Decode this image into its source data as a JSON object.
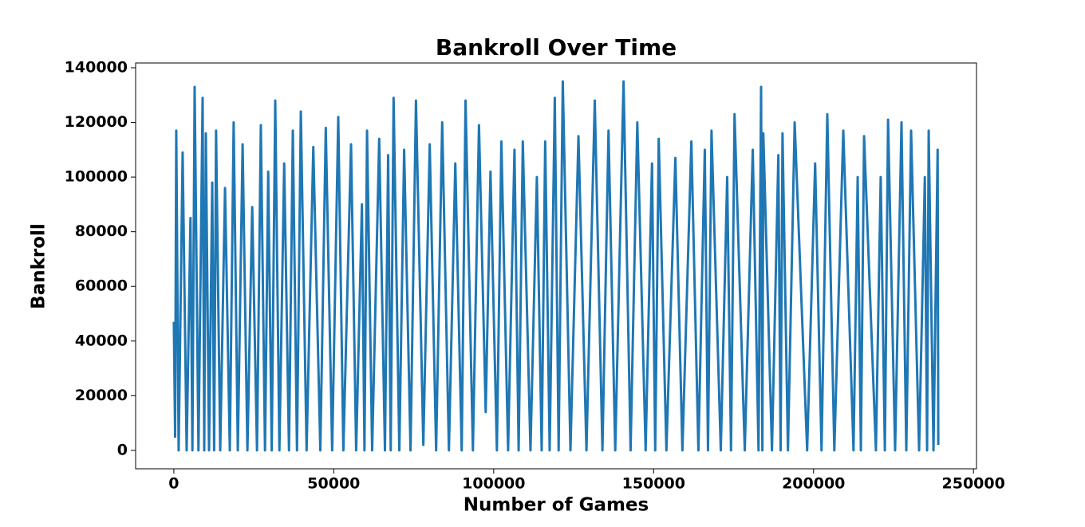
{
  "chart_data": {
    "type": "line",
    "title": "Bankroll Over Time",
    "x_label": "Number of Games",
    "y_label": "Bankroll",
    "x": [
      0,
      400,
      750,
      1500,
      2750,
      4000,
      5200,
      5800,
      6500,
      7700,
      9000,
      9500,
      10000,
      11000,
      12000,
      12600,
      13200,
      14500,
      16000,
      17500,
      18700,
      20000,
      21500,
      23000,
      24500,
      26000,
      27200,
      28500,
      29500,
      30600,
      31700,
      33000,
      34500,
      36000,
      37200,
      38500,
      39700,
      41500,
      43600,
      45800,
      47500,
      49500,
      51400,
      53000,
      55400,
      57000,
      58800,
      59600,
      60400,
      62000,
      64200,
      66000,
      67000,
      67800,
      68700,
      70500,
      72000,
      74000,
      75700,
      78000,
      80000,
      82000,
      83900,
      86000,
      88000,
      90000,
      91200,
      93500,
      95400,
      97500,
      99000,
      101000,
      102400,
      104500,
      106500,
      107800,
      109100,
      111500,
      113500,
      115000,
      116100,
      117500,
      119100,
      120300,
      121600,
      124000,
      126500,
      129000,
      131600,
      134000,
      135900,
      138000,
      140600,
      142800,
      144900,
      147500,
      149500,
      150500,
      151600,
      154000,
      156800,
      159000,
      161800,
      164000,
      166000,
      167000,
      168100,
      171000,
      173000,
      174200,
      175300,
      178500,
      181000,
      182800,
      183600,
      184000,
      184300,
      187000,
      189000,
      189700,
      190300,
      192000,
      194100,
      198000,
      200500,
      202500,
      204300,
      206500,
      209300,
      212500,
      213800,
      214800,
      215800,
      219500,
      221000,
      222300,
      223300,
      225500,
      227500,
      229000,
      230500,
      233000,
      234800,
      235500,
      236000,
      237500,
      238800,
      239000
    ],
    "series": [
      {
        "name": "Bankroll",
        "color": "#1f77b4",
        "values": [
          47000,
          5000,
          117000,
          0,
          109000,
          0,
          85000,
          0,
          133000,
          0,
          129000,
          0,
          116000,
          0,
          98000,
          0,
          117000,
          0,
          96000,
          0,
          120000,
          0,
          112000,
          0,
          89000,
          0,
          119000,
          0,
          102000,
          0,
          128000,
          0,
          105000,
          0,
          117000,
          0,
          124000,
          0,
          111000,
          0,
          118000,
          0,
          122000,
          0,
          112000,
          0,
          90000,
          0,
          117000,
          0,
          114000,
          0,
          108000,
          0,
          129000,
          0,
          110000,
          0,
          128000,
          2000,
          112000,
          0,
          120000,
          0,
          105000,
          0,
          128000,
          0,
          119000,
          14000,
          102000,
          0,
          113000,
          0,
          110000,
          0,
          113000,
          0,
          100000,
          0,
          113000,
          0,
          129000,
          0,
          135000,
          0,
          115000,
          0,
          128000,
          0,
          117000,
          0,
          135000,
          0,
          120000,
          0,
          105000,
          0,
          114000,
          0,
          107000,
          0,
          113000,
          0,
          110000,
          0,
          117000,
          0,
          100000,
          0,
          123000,
          0,
          110000,
          0,
          133000,
          0,
          116000,
          0,
          108000,
          0,
          116000,
          0,
          120000,
          0,
          105000,
          0,
          123000,
          0,
          117000,
          0,
          100000,
          0,
          115000,
          0,
          100000,
          0,
          121000,
          0,
          120000,
          0,
          117000,
          0,
          100000,
          0,
          117000,
          0,
          110000,
          2000
        ]
      }
    ],
    "xlim": [
      -11950,
      250950
    ],
    "ylim": [
      -6750,
      141750
    ],
    "xticks": [
      0,
      50000,
      100000,
      150000,
      200000,
      250000
    ],
    "yticks": [
      0,
      20000,
      40000,
      60000,
      80000,
      100000,
      120000,
      140000
    ]
  }
}
